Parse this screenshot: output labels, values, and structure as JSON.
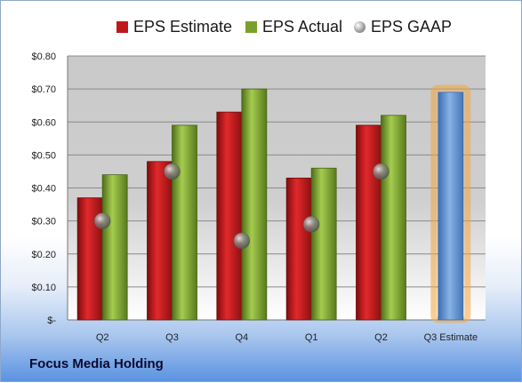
{
  "company": "Focus Media Holding",
  "chart_data": {
    "type": "bar",
    "categories": [
      "Q2",
      "Q3",
      "Q4",
      "Q1",
      "Q2",
      "Q3 Estimate"
    ],
    "series": [
      {
        "name": "EPS Estimate",
        "type": "bar",
        "color": "#c0171b",
        "values": [
          0.37,
          0.48,
          0.63,
          0.43,
          0.59,
          null
        ]
      },
      {
        "name": "EPS Actual",
        "type": "bar",
        "color": "#7aa02c",
        "values": [
          0.44,
          0.59,
          0.7,
          0.46,
          0.62,
          0.69
        ]
      },
      {
        "name": "EPS GAAP",
        "type": "scatter",
        "color": "#8a8a8a",
        "values": [
          0.3,
          0.45,
          0.24,
          0.29,
          0.45,
          null
        ]
      }
    ],
    "highlight": {
      "category": "Q3 Estimate",
      "color": "#6f9fd8",
      "glow": "#f4a640"
    },
    "yticks": [
      "$-",
      "$0.10",
      "$0.20",
      "$0.30",
      "$0.40",
      "$0.50",
      "$0.60",
      "$0.70",
      "$0.80"
    ],
    "ylim": [
      0,
      0.8
    ],
    "grid": true,
    "legend": "top"
  }
}
